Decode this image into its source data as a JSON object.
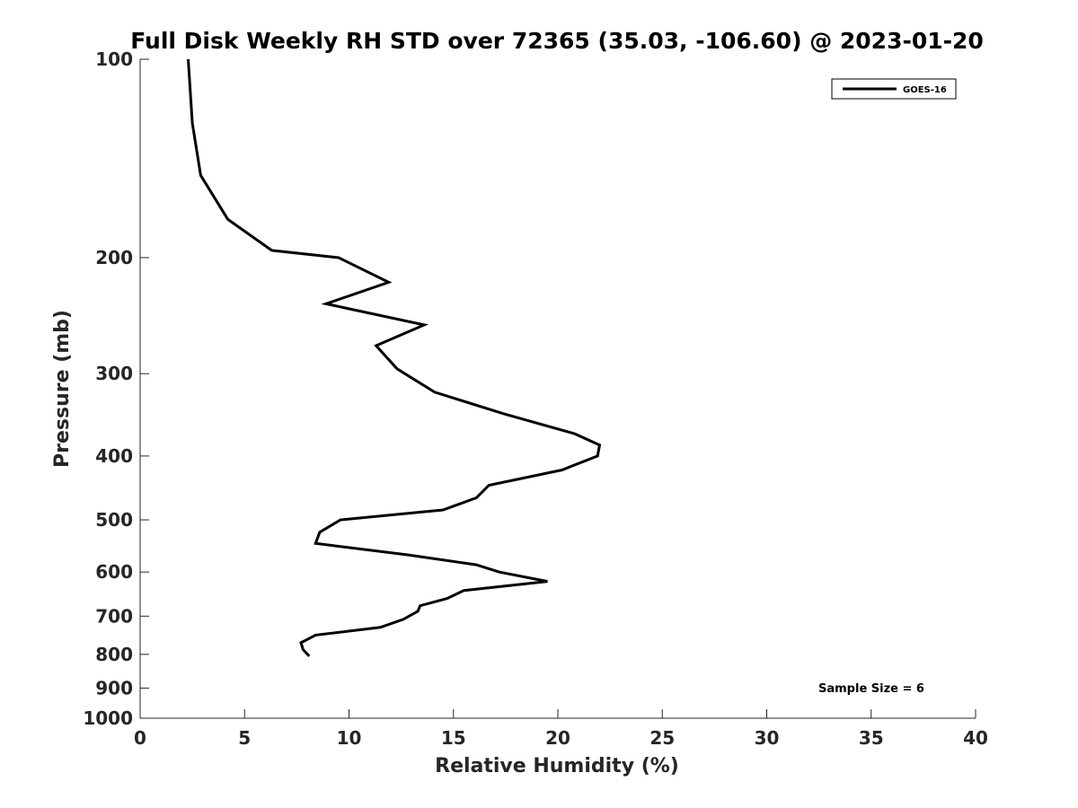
{
  "chart_data": {
    "type": "line",
    "title": "Full Disk Weekly RH STD over 72365 (35.03, -106.60) @ 2023-01-20",
    "xlabel": "Relative Humidity (%)",
    "ylabel": "Pressure (mb)",
    "xlim": [
      0,
      40
    ],
    "ylim": [
      100,
      1000
    ],
    "y_scale": "log",
    "y_reversed": true,
    "x_ticks": [
      0,
      5,
      10,
      15,
      20,
      25,
      30,
      35,
      40
    ],
    "y_ticks": [
      100,
      200,
      300,
      400,
      500,
      600,
      700,
      800,
      900,
      1000
    ],
    "grid": false,
    "legend_position": "top-right",
    "series": [
      {
        "name": "GOES-16",
        "color": "#000000",
        "points": [
          [
            2.3,
            100
          ],
          [
            2.5,
            125
          ],
          [
            2.9,
            150
          ],
          [
            4.2,
            175
          ],
          [
            6.3,
            195
          ],
          [
            9.5,
            200
          ],
          [
            11.9,
            218
          ],
          [
            8.9,
            235
          ],
          [
            13.6,
            253
          ],
          [
            11.3,
            272
          ],
          [
            12.3,
            295
          ],
          [
            14.1,
            320
          ],
          [
            17.4,
            345
          ],
          [
            20.8,
            370
          ],
          [
            22.0,
            385
          ],
          [
            21.9,
            400
          ],
          [
            20.2,
            420
          ],
          [
            16.7,
            443
          ],
          [
            16.1,
            463
          ],
          [
            14.5,
            483
          ],
          [
            9.6,
            500
          ],
          [
            8.6,
            522
          ],
          [
            8.4,
            543
          ],
          [
            12.8,
            565
          ],
          [
            16.1,
            585
          ],
          [
            17.2,
            600
          ],
          [
            19.5,
            620
          ],
          [
            15.5,
            640
          ],
          [
            14.7,
            658
          ],
          [
            13.4,
            675
          ],
          [
            13.3,
            688
          ],
          [
            12.6,
            708
          ],
          [
            11.5,
            728
          ],
          [
            8.4,
            748
          ],
          [
            7.7,
            768
          ],
          [
            7.8,
            787
          ],
          [
            8.1,
            805
          ]
        ]
      }
    ],
    "annotations": [
      "Sample Size = 6"
    ]
  }
}
